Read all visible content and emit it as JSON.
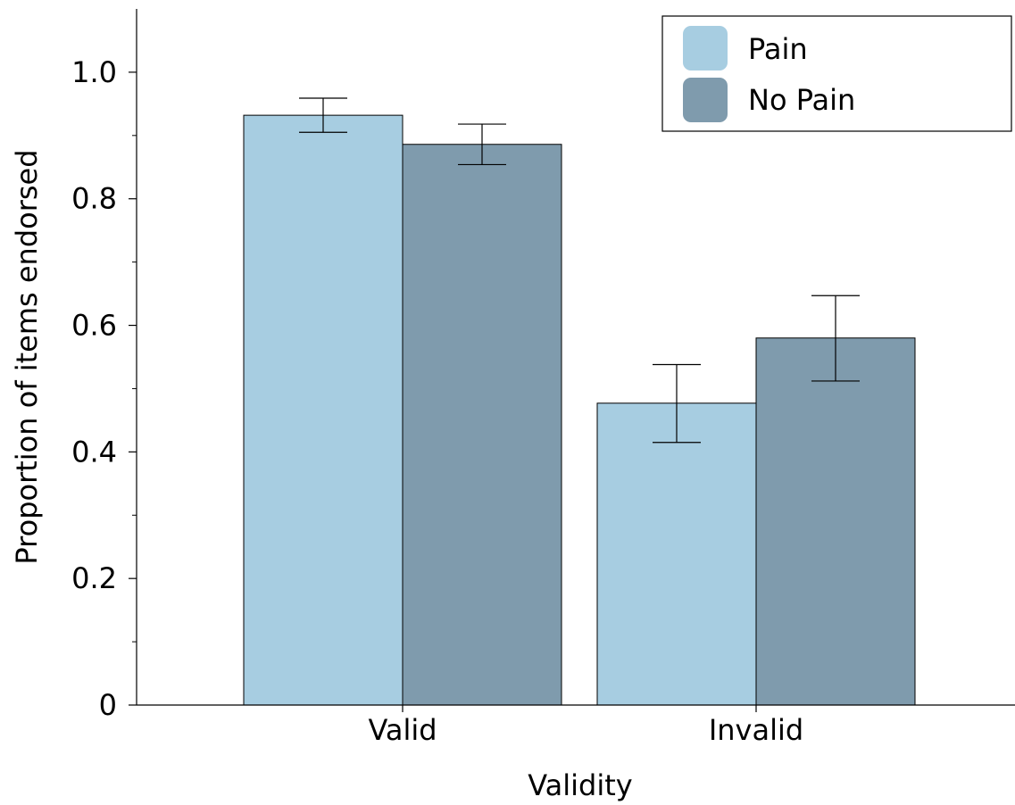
{
  "chart_data": {
    "type": "bar",
    "title": "",
    "xlabel": "Validity",
    "ylabel": "Proportion of items endorsed",
    "categories": [
      "Valid",
      "Invalid"
    ],
    "series": [
      {
        "name": "Pain",
        "color": "#a7cde1",
        "values": [
          0.932,
          0.477
        ],
        "error_low": [
          0.905,
          0.415
        ],
        "error_high": [
          0.959,
          0.538
        ]
      },
      {
        "name": "No Pain",
        "color": "#7f9bad",
        "values": [
          0.886,
          0.58
        ],
        "error_low": [
          0.854,
          0.512
        ],
        "error_high": [
          0.918,
          0.647
        ]
      }
    ],
    "ylim": [
      0,
      1.1
    ],
    "yticks": [
      {
        "value": 0,
        "label": "0"
      },
      {
        "value": 0.2,
        "label": "0.2"
      },
      {
        "value": 0.4,
        "label": "0.4"
      },
      {
        "value": 0.6,
        "label": "0.6"
      },
      {
        "value": 0.8,
        "label": "0.8"
      },
      {
        "value": 1.0,
        "label": "1.0"
      }
    ],
    "minor_yticks": [
      0.1,
      0.3,
      0.5,
      0.7,
      0.9
    ],
    "grid": false,
    "legend_position": "top-right"
  }
}
